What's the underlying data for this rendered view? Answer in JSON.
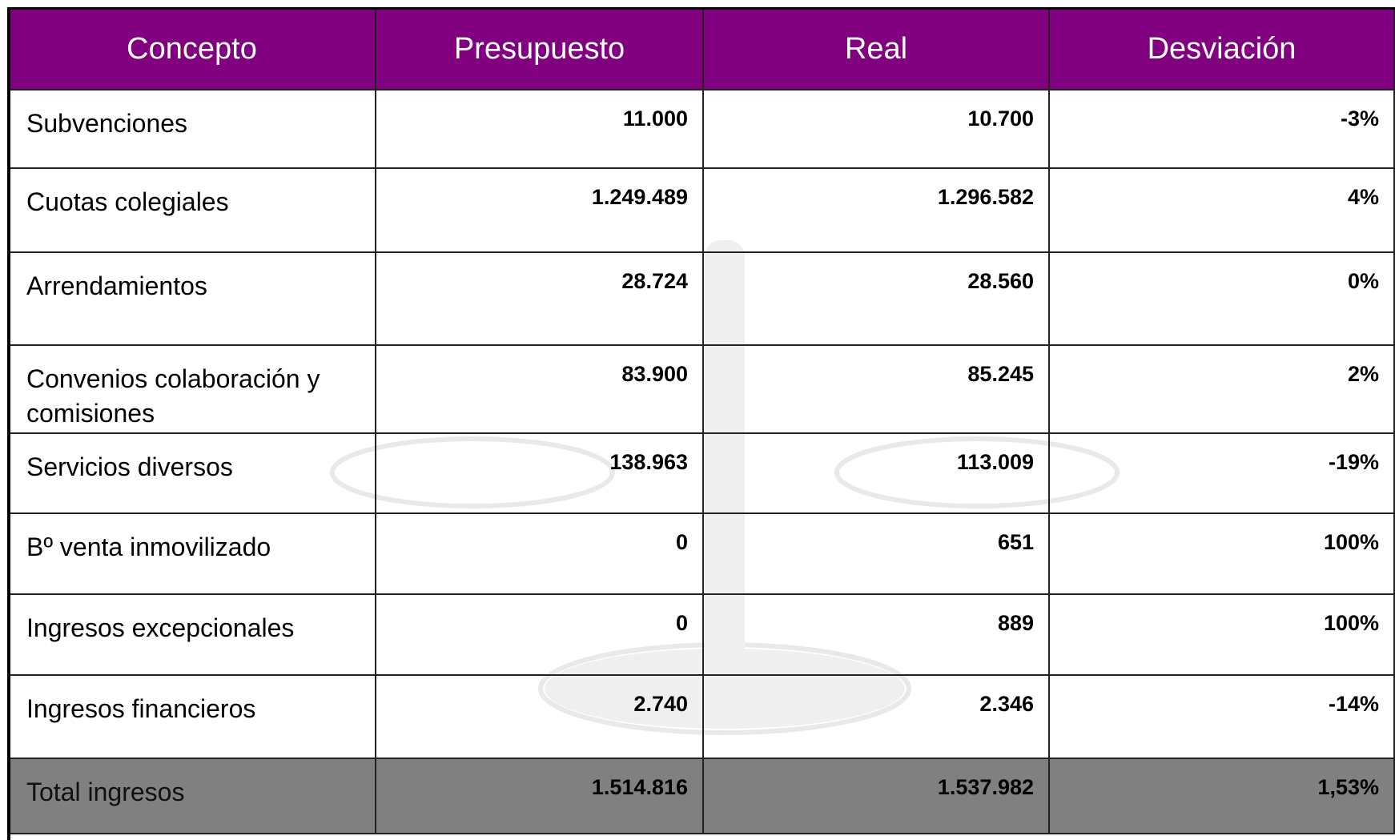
{
  "table": {
    "header": [
      "Concepto",
      "Presupuesto",
      "Real",
      "Desviación"
    ],
    "rows": [
      [
        "Subvenciones",
        "11.000",
        "10.700",
        "-3%"
      ],
      [
        "Cuotas colegiales",
        "1.249.489",
        "1.296.582",
        "4%"
      ],
      [
        "Arrendamientos",
        "28.724",
        "28.560",
        "0%"
      ],
      [
        "Convenios colaboración y comisiones",
        "83.900",
        "85.245",
        "2%"
      ],
      [
        "Servicios diversos",
        "138.963",
        "113.009",
        "-19%"
      ],
      [
        "Bº venta inmovilizado",
        "0",
        "651",
        "100%"
      ],
      [
        "Ingresos excepcionales",
        "0",
        "889",
        "100%"
      ],
      [
        "Ingresos financieros",
        "2.740",
        "2.346",
        "-14%"
      ]
    ],
    "total": [
      "Total ingresos",
      "1.514.816",
      "1.537.982",
      "1,53%"
    ]
  }
}
